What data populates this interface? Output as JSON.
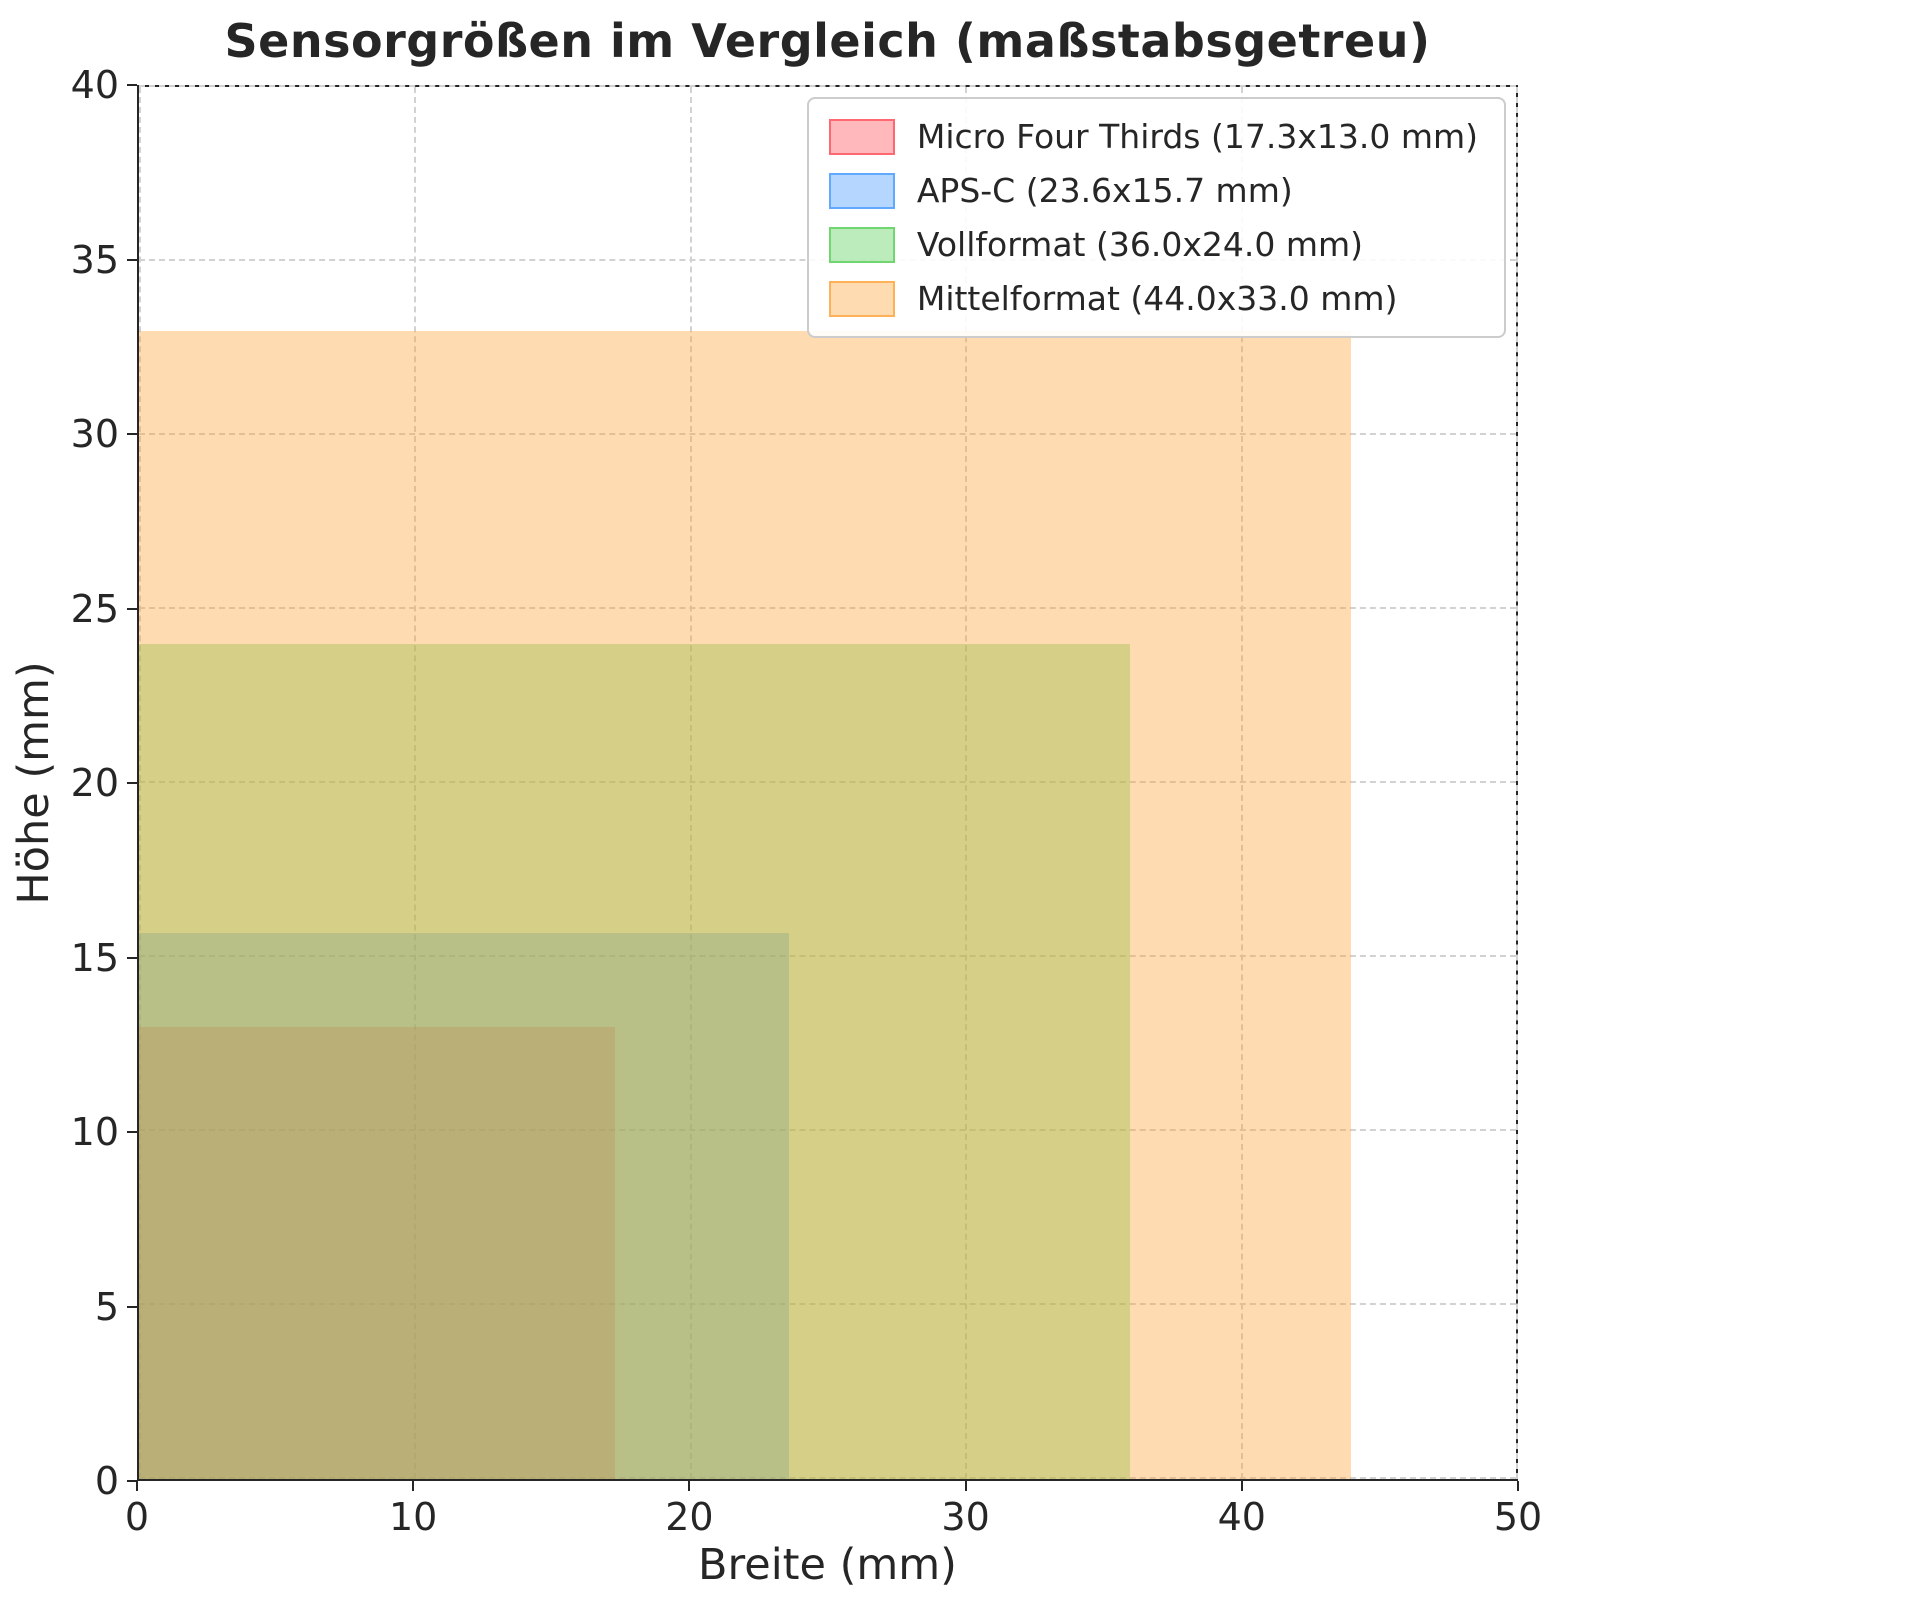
{
  "chart_data": {
    "type": "area",
    "title": "Sensorgrößen im Vergleich (maßstabsgetreu)",
    "xlabel": "Breite (mm)",
    "ylabel": "Höhe (mm)",
    "xlim": [
      0,
      50
    ],
    "ylim": [
      0,
      40
    ],
    "xticks": [
      0,
      10,
      20,
      30,
      40,
      50
    ],
    "yticks": [
      0,
      5,
      10,
      15,
      20,
      25,
      30,
      35,
      40
    ],
    "grid": true,
    "grid_style": "dashed",
    "legend_position": "upper right",
    "series": [
      {
        "name": "Micro Four Thirds (17.3x13.0 mm)",
        "width_mm": 17.3,
        "height_mm": 13.0,
        "color": "#ff4650",
        "fill": "rgba(255,70,80,0.38)",
        "edge": "rgba(255,70,80,0.7)"
      },
      {
        "name": "APS-C (23.6x15.7 mm)",
        "width_mm": 23.6,
        "height_mm": 15.7,
        "color": "#3c96ff",
        "fill": "rgba(60,150,255,0.38)",
        "edge": "rgba(60,150,255,0.7)"
      },
      {
        "name": "Vollformat (36.0x24.0 mm)",
        "width_mm": 36.0,
        "height_mm": 24.0,
        "color": "#50cd50",
        "fill": "rgba(80,205,80,0.38)",
        "edge": "rgba(80,205,80,0.7)"
      },
      {
        "name": "Mittelformat (44.0x33.0 mm)",
        "width_mm": 44.0,
        "height_mm": 33.0,
        "color": "#ffa032",
        "fill": "rgba(255,160,50,0.38)",
        "edge": "rgba(255,160,50,0.7)"
      }
    ]
  }
}
